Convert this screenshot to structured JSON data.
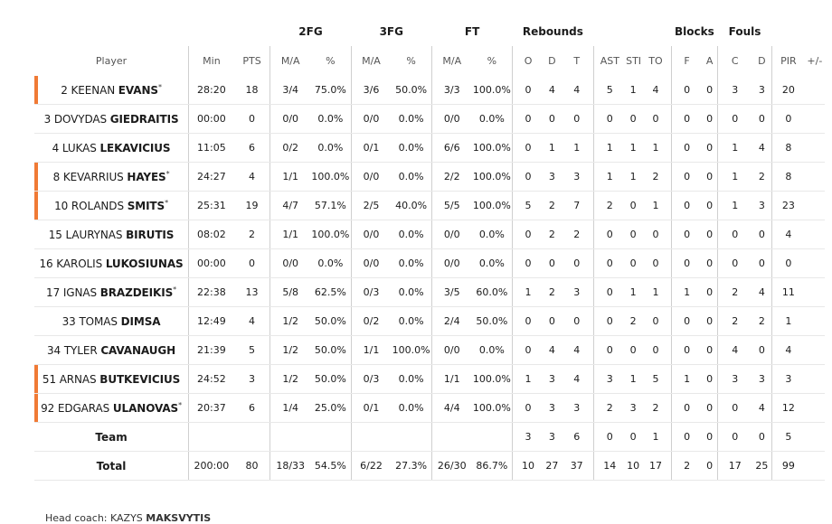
{
  "group_headers": {
    "fg2": "2FG",
    "fg3": "3FG",
    "ft": "FT",
    "rebounds": "Rebounds",
    "blocks": "Blocks",
    "fouls": "Fouls"
  },
  "sub_headers": {
    "player": "Player",
    "min": "Min",
    "pts": "PTS",
    "fg2_ma": "M/A",
    "fg2_pct": "%",
    "fg3_ma": "M/A",
    "fg3_pct": "%",
    "ft_ma": "M/A",
    "ft_pct": "%",
    "o": "O",
    "d": "D",
    "t": "T",
    "ast": "AST",
    "stl": "STL",
    "to": "TO",
    "bf": "F",
    "ba": "A",
    "fc": "C",
    "fd": "D",
    "pir": "PIR",
    "pm": "+/-"
  },
  "players": [
    {
      "num": "2",
      "first": "KEENAN",
      "last": "EVANS",
      "star": "*",
      "starter": true,
      "stats": [
        "28:20",
        "18",
        "3/4",
        "75.0%",
        "3/6",
        "50.0%",
        "3/3",
        "100.0%",
        "0",
        "4",
        "4",
        "5",
        "1",
        "4",
        "0",
        "0",
        "3",
        "3",
        "20",
        ""
      ]
    },
    {
      "num": "3",
      "first": "DOVYDAS",
      "last": "GIEDRAITIS",
      "star": "",
      "starter": false,
      "stats": [
        "00:00",
        "0",
        "0/0",
        "0.0%",
        "0/0",
        "0.0%",
        "0/0",
        "0.0%",
        "0",
        "0",
        "0",
        "0",
        "0",
        "0",
        "0",
        "0",
        "0",
        "0",
        "0",
        ""
      ]
    },
    {
      "num": "4",
      "first": "LUKAS",
      "last": "LEKAVICIUS",
      "star": "",
      "starter": false,
      "stats": [
        "11:05",
        "6",
        "0/2",
        "0.0%",
        "0/1",
        "0.0%",
        "6/6",
        "100.0%",
        "0",
        "1",
        "1",
        "1",
        "1",
        "1",
        "0",
        "0",
        "1",
        "4",
        "8",
        ""
      ]
    },
    {
      "num": "8",
      "first": "KEVARRIUS",
      "last": "HAYES",
      "star": "*",
      "starter": true,
      "stats": [
        "24:27",
        "4",
        "1/1",
        "100.0%",
        "0/0",
        "0.0%",
        "2/2",
        "100.0%",
        "0",
        "3",
        "3",
        "1",
        "1",
        "2",
        "0",
        "0",
        "1",
        "2",
        "8",
        ""
      ]
    },
    {
      "num": "10",
      "first": "ROLANDS",
      "last": "SMITS",
      "star": "*",
      "starter": true,
      "stats": [
        "25:31",
        "19",
        "4/7",
        "57.1%",
        "2/5",
        "40.0%",
        "5/5",
        "100.0%",
        "5",
        "2",
        "7",
        "2",
        "0",
        "1",
        "0",
        "0",
        "1",
        "3",
        "23",
        ""
      ]
    },
    {
      "num": "15",
      "first": "LAURYNAS",
      "last": "BIRUTIS",
      "star": "",
      "starter": false,
      "stats": [
        "08:02",
        "2",
        "1/1",
        "100.0%",
        "0/0",
        "0.0%",
        "0/0",
        "0.0%",
        "0",
        "2",
        "2",
        "0",
        "0",
        "0",
        "0",
        "0",
        "0",
        "0",
        "4",
        ""
      ]
    },
    {
      "num": "16",
      "first": "KAROLIS",
      "last": "LUKOSIUNAS",
      "star": "",
      "starter": false,
      "stats": [
        "00:00",
        "0",
        "0/0",
        "0.0%",
        "0/0",
        "0.0%",
        "0/0",
        "0.0%",
        "0",
        "0",
        "0",
        "0",
        "0",
        "0",
        "0",
        "0",
        "0",
        "0",
        "0",
        ""
      ]
    },
    {
      "num": "17",
      "first": "IGNAS",
      "last": "BRAZDEIKIS",
      "star": "*",
      "starter": false,
      "stats": [
        "22:38",
        "13",
        "5/8",
        "62.5%",
        "0/3",
        "0.0%",
        "3/5",
        "60.0%",
        "1",
        "2",
        "3",
        "0",
        "1",
        "1",
        "1",
        "0",
        "2",
        "4",
        "11",
        ""
      ]
    },
    {
      "num": "33",
      "first": "TOMAS",
      "last": "DIMSA",
      "star": "",
      "starter": false,
      "stats": [
        "12:49",
        "4",
        "1/2",
        "50.0%",
        "0/2",
        "0.0%",
        "2/4",
        "50.0%",
        "0",
        "0",
        "0",
        "0",
        "2",
        "0",
        "0",
        "0",
        "2",
        "2",
        "1",
        ""
      ]
    },
    {
      "num": "34",
      "first": "TYLER",
      "last": "CAVANAUGH",
      "star": "",
      "starter": false,
      "stats": [
        "21:39",
        "5",
        "1/2",
        "50.0%",
        "1/1",
        "100.0%",
        "0/0",
        "0.0%",
        "0",
        "4",
        "4",
        "0",
        "0",
        "0",
        "0",
        "0",
        "4",
        "0",
        "4",
        ""
      ]
    },
    {
      "num": "51",
      "first": "ARNAS",
      "last": "BUTKEVICIUS",
      "star": "",
      "starter": true,
      "stats": [
        "24:52",
        "3",
        "1/2",
        "50.0%",
        "0/3",
        "0.0%",
        "1/1",
        "100.0%",
        "1",
        "3",
        "4",
        "3",
        "1",
        "5",
        "1",
        "0",
        "3",
        "3",
        "3",
        ""
      ]
    },
    {
      "num": "92",
      "first": "EDGARAS",
      "last": "ULANOVAS",
      "star": "*",
      "starter": true,
      "stats": [
        "20:37",
        "6",
        "1/4",
        "25.0%",
        "0/1",
        "0.0%",
        "4/4",
        "100.0%",
        "0",
        "3",
        "3",
        "2",
        "3",
        "2",
        "0",
        "0",
        "0",
        "4",
        "12",
        ""
      ]
    }
  ],
  "team": {
    "label": "Team",
    "stats": [
      "",
      "",
      "",
      "",
      "",
      "",
      "",
      "",
      "3",
      "3",
      "6",
      "0",
      "0",
      "1",
      "0",
      "0",
      "0",
      "0",
      "5",
      ""
    ]
  },
  "total": {
    "label": "Total",
    "stats": [
      "200:00",
      "80",
      "18/33",
      "54.5%",
      "6/22",
      "27.3%",
      "26/30",
      "86.7%",
      "10",
      "27",
      "37",
      "14",
      "10",
      "17",
      "2",
      "0",
      "17",
      "25",
      "99",
      ""
    ]
  },
  "coach": {
    "prefix": "Head coach: KAZYS",
    "name": "MAKSVYTIS"
  },
  "colors": {
    "starter_marker": "#f07a35",
    "divider": "#cfcfcf"
  }
}
